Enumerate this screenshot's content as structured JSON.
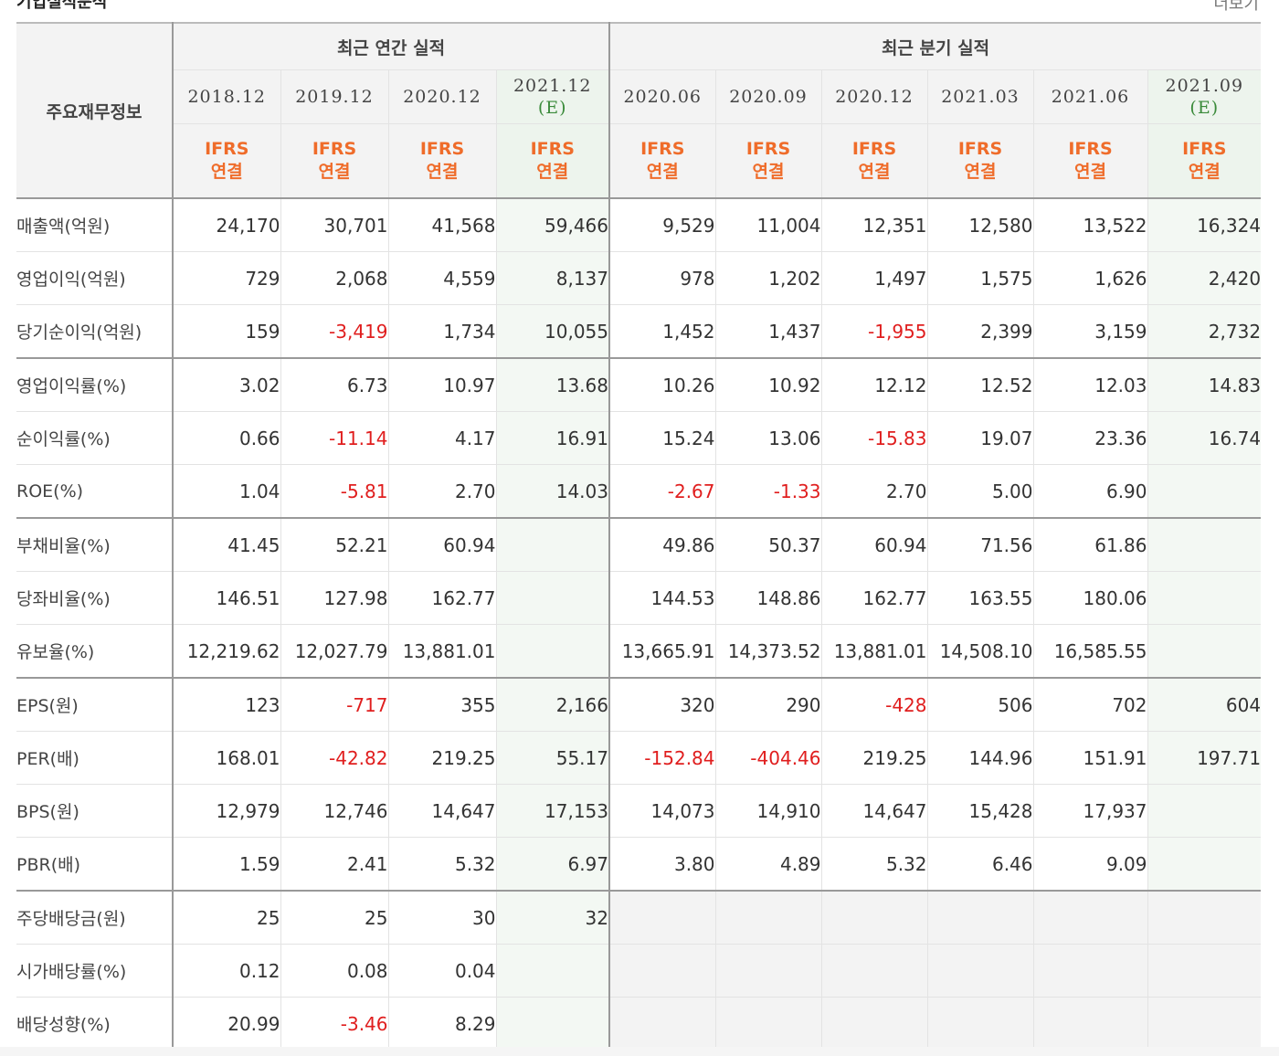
{
  "section_title": "기업실적분석",
  "more_label": "더보기",
  "corner_label": "주요재무정보",
  "groups": {
    "annual": "최근 연간 실적",
    "quarterly": "최근 분기 실적"
  },
  "periods": [
    {
      "label": "2018.12",
      "est": ""
    },
    {
      "label": "2019.12",
      "est": ""
    },
    {
      "label": "2020.12",
      "est": ""
    },
    {
      "label": "2021.12",
      "est": "(E)"
    },
    {
      "label": "2020.06",
      "est": ""
    },
    {
      "label": "2020.09",
      "est": ""
    },
    {
      "label": "2020.12",
      "est": ""
    },
    {
      "label": "2021.03",
      "est": ""
    },
    {
      "label": "2021.06",
      "est": ""
    },
    {
      "label": "2021.09",
      "est": "(E)"
    }
  ],
  "ifrs_label": "IFRS",
  "ifrs_sub": "연결",
  "rows": [
    {
      "label": "매출액(억원)",
      "values": [
        "24,170",
        "30,701",
        "41,568",
        "59,466",
        "9,529",
        "11,004",
        "12,351",
        "12,580",
        "13,522",
        "16,324"
      ]
    },
    {
      "label": "영업이익(억원)",
      "values": [
        "729",
        "2,068",
        "4,559",
        "8,137",
        "978",
        "1,202",
        "1,497",
        "1,575",
        "1,626",
        "2,420"
      ]
    },
    {
      "label": "당기순이익(억원)",
      "values": [
        "159",
        "-3,419",
        "1,734",
        "10,055",
        "1,452",
        "1,437",
        "-1,955",
        "2,399",
        "3,159",
        "2,732"
      ]
    },
    {
      "label": "영업이익률(%)",
      "values": [
        "3.02",
        "6.73",
        "10.97",
        "13.68",
        "10.26",
        "10.92",
        "12.12",
        "12.52",
        "12.03",
        "14.83"
      ]
    },
    {
      "label": "순이익률(%)",
      "values": [
        "0.66",
        "-11.14",
        "4.17",
        "16.91",
        "15.24",
        "13.06",
        "-15.83",
        "19.07",
        "23.36",
        "16.74"
      ]
    },
    {
      "label": "ROE(%)",
      "values": [
        "1.04",
        "-5.81",
        "2.70",
        "14.03",
        "-2.67",
        "-1.33",
        "2.70",
        "5.00",
        "6.90",
        ""
      ]
    },
    {
      "label": "부채비율(%)",
      "values": [
        "41.45",
        "52.21",
        "60.94",
        "",
        "49.86",
        "50.37",
        "60.94",
        "71.56",
        "61.86",
        ""
      ]
    },
    {
      "label": "당좌비율(%)",
      "values": [
        "146.51",
        "127.98",
        "162.77",
        "",
        "144.53",
        "148.86",
        "162.77",
        "163.55",
        "180.06",
        ""
      ]
    },
    {
      "label": "유보율(%)",
      "values": [
        "12,219.62",
        "12,027.79",
        "13,881.01",
        "",
        "13,665.91",
        "14,373.52",
        "13,881.01",
        "14,508.10",
        "16,585.55",
        ""
      ]
    },
    {
      "label": "EPS(원)",
      "values": [
        "123",
        "-717",
        "355",
        "2,166",
        "320",
        "290",
        "-428",
        "506",
        "702",
        "604"
      ]
    },
    {
      "label": "PER(배)",
      "values": [
        "168.01",
        "-42.82",
        "219.25",
        "55.17",
        "-152.84",
        "-404.46",
        "219.25",
        "144.96",
        "151.91",
        "197.71"
      ]
    },
    {
      "label": "BPS(원)",
      "values": [
        "12,979",
        "12,746",
        "14,647",
        "17,153",
        "14,073",
        "14,910",
        "14,647",
        "15,428",
        "17,937",
        ""
      ]
    },
    {
      "label": "PBR(배)",
      "values": [
        "1.59",
        "2.41",
        "5.32",
        "6.97",
        "3.80",
        "4.89",
        "5.32",
        "6.46",
        "9.09",
        ""
      ]
    },
    {
      "label": "주당배당금(원)",
      "values": [
        "25",
        "25",
        "30",
        "32",
        "",
        "",
        "",
        "",
        "",
        ""
      ]
    },
    {
      "label": "시가배당률(%)",
      "values": [
        "0.12",
        "0.08",
        "0.04",
        "",
        "",
        "",
        "",
        "",
        "",
        ""
      ]
    },
    {
      "label": "배당성향(%)",
      "values": [
        "20.99",
        "-3.46",
        "8.29",
        "",
        "",
        "",
        "",
        "",
        "",
        ""
      ]
    }
  ],
  "colors": {
    "negative": "#e01e1e",
    "ifrs": "#ef6c2a",
    "estimate": "#3a8a3a"
  }
}
